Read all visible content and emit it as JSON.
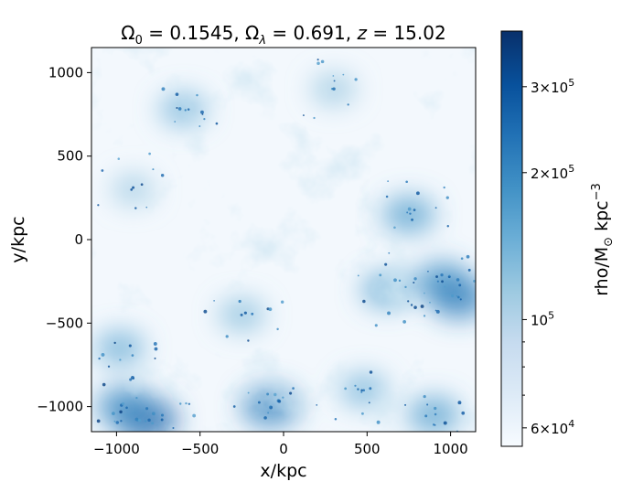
{
  "chart_data": {
    "type": "heatmap",
    "title": "Ω₀ = 0.1545, Ωλ = 0.691, z = 15.02",
    "title_parts": {
      "omega0_symbol": "Ω",
      "omega0_sub": "0",
      "omega0_value": " = 0.1545, ",
      "omegal_symbol": "Ω",
      "omegal_sub": "λ",
      "omegal_value": " = 0.691, ",
      "z_symbol": "z",
      "z_value": " = 15.02"
    },
    "xlabel": "x/kpc",
    "ylabel": "y/kpc",
    "xlim": [
      -1150,
      1150
    ],
    "ylim": [
      -1150,
      1150
    ],
    "xticks": [
      -1000,
      -500,
      0,
      500,
      1000
    ],
    "yticks": [
      -1000,
      -500,
      0,
      500,
      1000
    ],
    "xtick_labels": [
      "−1000",
      "−500",
      "0",
      "500",
      "1000"
    ],
    "ytick_labels": [
      "−1000",
      "−500",
      "0",
      "500",
      "1000"
    ],
    "colormap": "Blues",
    "colormap_colors": [
      "#f7fbff",
      "#deebf7",
      "#c6dbef",
      "#9ecae1",
      "#6baed6",
      "#4292c6",
      "#2171b5",
      "#08519c",
      "#08306b"
    ],
    "colorbar": {
      "label_main": "rho/M",
      "label_sub": "⊙",
      "label_unit": " kpc",
      "label_exp": "−3",
      "scale": "log",
      "range": [
        55000,
        390000
      ],
      "major_ticks": [
        {
          "value": 60000,
          "mant": "6",
          "exp": "4"
        },
        {
          "value": 100000,
          "mant": "",
          "exp": "5"
        },
        {
          "value": 200000,
          "mant": "2",
          "exp": "5"
        },
        {
          "value": 300000,
          "mant": "3",
          "exp": "5"
        }
      ],
      "minor_ticks": [
        70000,
        80000,
        90000
      ]
    },
    "density_field": {
      "description": "log density map, mostly low values with filaments",
      "dense_regions": [
        {
          "x": -820,
          "y": -1080,
          "value": 260000
        },
        {
          "x": -950,
          "y": -1000,
          "value": 200000
        },
        {
          "x": -80,
          "y": -1000,
          "value": 210000
        },
        {
          "x": 950,
          "y": -250,
          "value": 190000
        },
        {
          "x": 1050,
          "y": -350,
          "value": 220000
        },
        {
          "x": 750,
          "y": 150,
          "value": 170000
        },
        {
          "x": 900,
          "y": -1050,
          "value": 170000
        },
        {
          "x": -600,
          "y": 780,
          "value": 140000
        },
        {
          "x": -980,
          "y": -650,
          "value": 150000
        },
        {
          "x": 620,
          "y": -300,
          "value": 160000
        },
        {
          "x": -250,
          "y": -450,
          "value": 130000
        },
        {
          "x": 480,
          "y": -900,
          "value": 140000
        },
        {
          "x": 300,
          "y": 900,
          "value": 120000
        },
        {
          "x": -900,
          "y": 300,
          "value": 115000
        }
      ]
    }
  }
}
